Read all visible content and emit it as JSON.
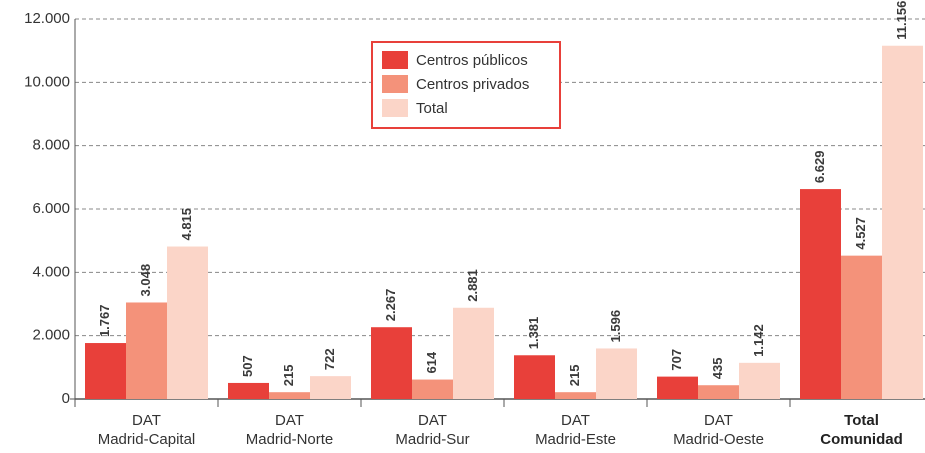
{
  "chart_data": {
    "type": "bar",
    "categories": [
      [
        "DAT",
        "Madrid-Capital"
      ],
      [
        "DAT",
        "Madrid-Norte"
      ],
      [
        "DAT",
        "Madrid-Sur"
      ],
      [
        "DAT",
        "Madrid-Este"
      ],
      [
        "DAT",
        "Madrid-Oeste"
      ],
      [
        "Total",
        "Comunidad"
      ]
    ],
    "series": [
      {
        "name": "Centros públicos",
        "color": "#e8403a",
        "values": [
          1767,
          507,
          2267,
          1381,
          707,
          6629
        ],
        "value_labels": [
          "1.767",
          "507",
          "2.267",
          "1.381",
          "707",
          "6.629"
        ]
      },
      {
        "name": "Centros privados",
        "color": "#f4927a",
        "values": [
          3048,
          215,
          614,
          215,
          435,
          4527
        ],
        "value_labels": [
          "3.048",
          "215",
          "614",
          "215",
          "435",
          "4.527"
        ]
      },
      {
        "name": "Total",
        "color": "#fbd5c8",
        "values": [
          4815,
          722,
          2881,
          1596,
          1142,
          11156
        ],
        "value_labels": [
          "4.815",
          "722",
          "2.881",
          "1.596",
          "1.142",
          "11.156"
        ]
      }
    ],
    "ylim": [
      0,
      12000
    ],
    "yticks": [
      0,
      {
        "value": 2000,
        "label": "2.000"
      },
      {
        "value": 4000,
        "label": "4.000"
      },
      {
        "value": 6000,
        "label": "6.000"
      },
      {
        "value": 8000,
        "label": "8.000"
      },
      {
        "value": 10000,
        "label": "10.000"
      },
      {
        "value": 12000,
        "label": "12.000"
      }
    ],
    "grid": true,
    "legend": "top-center"
  }
}
